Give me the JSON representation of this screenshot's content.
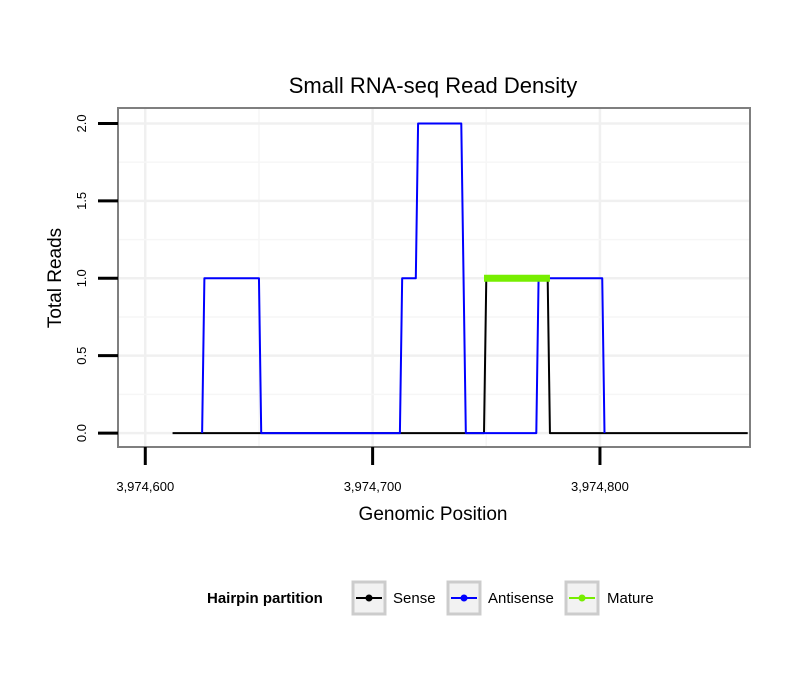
{
  "chart_data": {
    "type": "line",
    "title": "Small RNA-seq Read Density",
    "xlabel": "Genomic Position",
    "ylabel": "Total Reads",
    "xlim": [
      3974588,
      3974866
    ],
    "ylim": [
      -0.09,
      2.1
    ],
    "xticks": [
      3974600,
      3974700,
      3974800
    ],
    "xtick_labels": [
      "3,974,600",
      "3,974,700",
      "3,974,800"
    ],
    "yticks": [
      0,
      0.5,
      1,
      1.5,
      2
    ],
    "ytick_labels": [
      "0.0",
      "0.5",
      "1.0",
      "1.5",
      "2.0"
    ],
    "grid": true,
    "legend": {
      "title": "Hairpin partition",
      "position": "bottom",
      "entries": [
        "Sense",
        "Antisense",
        "Mature"
      ]
    },
    "series": [
      {
        "name": "Sense",
        "color": "#000000",
        "x": [
          3974612,
          3974749,
          3974750,
          3974777,
          3974778,
          3974865
        ],
        "y": [
          0,
          0,
          1,
          1,
          0,
          0
        ]
      },
      {
        "name": "Antisense",
        "color": "#0000ff",
        "x": [
          3974625,
          3974626,
          3974650,
          3974651,
          3974712,
          3974713,
          3974719,
          3974720,
          3974739,
          3974741,
          3974772,
          3974773,
          3974801,
          3974802
        ],
        "y": [
          0,
          1,
          1,
          0,
          0,
          1,
          1,
          2,
          2,
          0,
          0,
          1,
          1,
          0
        ]
      },
      {
        "name": "Mature",
        "color": "#77ee00",
        "x": [
          3974749,
          3974778
        ],
        "y": [
          1,
          1
        ]
      }
    ]
  }
}
